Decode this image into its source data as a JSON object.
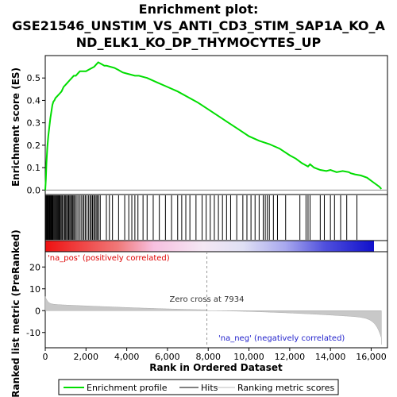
{
  "chart_data": {
    "type": "line",
    "title_line1": "Enrichment plot:",
    "title_line2": "GSE21546_UNSTIM_VS_ANTI_CD3_STIM_SAP1A_KO_A",
    "title_line3": "ND_ELK1_KO_DP_THYMOCYTES_UP",
    "ylabel_top": "Enrichment score (ES)",
    "ylabel_bottom": "Ranked list metric (PreRanked)",
    "xlabel": "Rank in Ordered Dataset",
    "xlim": [
      0,
      16800
    ],
    "xticks": [
      0,
      2000,
      4000,
      6000,
      8000,
      10000,
      12000,
      14000,
      16000
    ],
    "xtick_labels": [
      "0",
      "2,000",
      "4,000",
      "6,000",
      "8,000",
      "10,000",
      "12,000",
      "14,000",
      "16,000"
    ],
    "es_ylim": [
      -0.02,
      0.6
    ],
    "es_yticks": [
      0.0,
      0.1,
      0.2,
      0.3,
      0.4,
      0.5
    ],
    "es_ytick_labels": [
      "0.0",
      "0.1",
      "0.2",
      "0.3",
      "0.4",
      "0.5"
    ],
    "metric_ylim": [
      -17,
      27
    ],
    "metric_yticks": [
      -10,
      0,
      10,
      20
    ],
    "metric_ytick_labels": [
      "-10",
      "0",
      "10",
      "20"
    ],
    "zero_cross_label": "Zero cross at 7934",
    "zero_cross": 7934,
    "pos_label": "'na_pos' (positively correlated)",
    "neg_label": "'na_neg' (negatively correlated)",
    "series": [
      {
        "name": "Enrichment profile",
        "color": "#00dd00",
        "x": [
          0,
          30,
          60,
          100,
          150,
          200,
          250,
          300,
          350,
          400,
          450,
          500,
          600,
          700,
          800,
          900,
          1000,
          1100,
          1200,
          1300,
          1400,
          1500,
          1600,
          1700,
          1800,
          1900,
          2000,
          2100,
          2200,
          2300,
          2400,
          2500,
          2600,
          2700,
          2800,
          2900,
          3000,
          3200,
          3400,
          3600,
          3800,
          4000,
          4200,
          4400,
          4600,
          4800,
          5000,
          5500,
          6000,
          6500,
          7000,
          7500,
          8000,
          8500,
          9000,
          9500,
          10000,
          10500,
          11000,
          11500,
          12000,
          12300,
          12600,
          12900,
          13000,
          13200,
          13500,
          13800,
          14000,
          14300,
          14600,
          14900,
          15000,
          15200,
          15500,
          15800,
          16100,
          16400,
          16500
        ],
        "y": [
          0.0,
          0.05,
          0.12,
          0.19,
          0.24,
          0.28,
          0.32,
          0.35,
          0.38,
          0.395,
          0.4,
          0.41,
          0.42,
          0.43,
          0.44,
          0.46,
          0.47,
          0.48,
          0.49,
          0.5,
          0.51,
          0.51,
          0.52,
          0.53,
          0.53,
          0.53,
          0.53,
          0.535,
          0.54,
          0.545,
          0.55,
          0.56,
          0.57,
          0.565,
          0.56,
          0.555,
          0.555,
          0.55,
          0.545,
          0.535,
          0.525,
          0.52,
          0.515,
          0.51,
          0.51,
          0.505,
          0.5,
          0.48,
          0.46,
          0.44,
          0.415,
          0.39,
          0.36,
          0.33,
          0.3,
          0.27,
          0.24,
          0.22,
          0.205,
          0.185,
          0.155,
          0.14,
          0.12,
          0.105,
          0.115,
          0.1,
          0.09,
          0.085,
          0.09,
          0.08,
          0.085,
          0.08,
          0.075,
          0.07,
          0.065,
          0.055,
          0.035,
          0.015,
          0.005
        ]
      }
    ],
    "hits": [
      20,
      50,
      80,
      110,
      140,
      170,
      200,
      230,
      260,
      290,
      320,
      350,
      380,
      420,
      460,
      500,
      540,
      580,
      620,
      660,
      700,
      740,
      790,
      840,
      900,
      950,
      1000,
      1050,
      1100,
      1150,
      1200,
      1250,
      1300,
      1350,
      1400,
      1450,
      1520,
      1600,
      1680,
      1760,
      1840,
      1900,
      1970,
      2050,
      2130,
      2200,
      2260,
      2320,
      2380,
      2440,
      2500,
      2560,
      2620,
      2700,
      3000,
      3150,
      3300,
      3600,
      3900,
      4100,
      4250,
      4400,
      4550,
      4800,
      5000,
      5300,
      5600,
      5900,
      6200,
      6500,
      6700,
      6900,
      7100,
      7400,
      7700,
      7900,
      8100,
      8300,
      8500,
      8700,
      8900,
      9100,
      9400,
      9700,
      9900,
      10100,
      10300,
      10500,
      10700,
      10800,
      10900,
      11000,
      11200,
      11400,
      11800,
      12500,
      12800,
      12900,
      13000,
      13500,
      13700,
      14000,
      14200,
      14500,
      14800,
      15300
    ]
  },
  "legend": {
    "items": [
      {
        "label": "Enrichment profile",
        "color": "#00dd00"
      },
      {
        "label": "Hits",
        "color": "#000000"
      },
      {
        "label": "Ranking metric scores",
        "color": "#bbbbbb"
      }
    ]
  }
}
